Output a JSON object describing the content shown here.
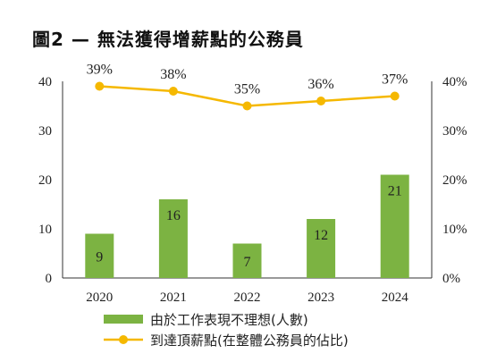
{
  "title": "圖2 — 無法獲得增薪點的公務員",
  "chart_data": {
    "type": "bar",
    "categories": [
      "2020",
      "2021",
      "2022",
      "2023",
      "2024"
    ],
    "series": [
      {
        "name": "由於工作表現不理想(人數)",
        "type": "bar",
        "axis": "left",
        "values": [
          9,
          16,
          7,
          12,
          21
        ],
        "labels": [
          "9",
          "16",
          "7",
          "12",
          "21"
        ],
        "color": "#7cb342"
      },
      {
        "name": "到達頂薪點(在整體公務員的佔比)",
        "type": "line",
        "axis": "right",
        "values": [
          39,
          38,
          35,
          36,
          37
        ],
        "labels": [
          "39%",
          "38%",
          "35%",
          "36%",
          "37%"
        ],
        "color": "#f5b800"
      }
    ],
    "y_left": {
      "ylim": [
        0,
        40
      ],
      "ticks": [
        "0",
        "10",
        "20",
        "30",
        "40"
      ]
    },
    "y_right": {
      "ylim": [
        0,
        40
      ],
      "ticks": [
        "0%",
        "10%",
        "20%",
        "30%",
        "40%"
      ]
    },
    "legend_position": "bottom",
    "grid": false
  }
}
